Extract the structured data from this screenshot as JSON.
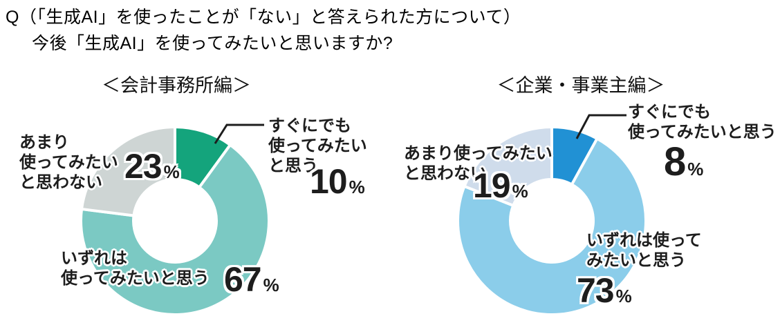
{
  "page": {
    "background": "#ffffff",
    "question_line1": "Q（「生成AI」を使ったことが「ない」と答えられた方について）",
    "question_line2": "今後「生成AI」を使ってみたいと思いますか?"
  },
  "chart_data": [
    {
      "type": "pie",
      "subtype": "donut",
      "title": "＜会計事務所編＞",
      "categories": [
        "すぐにでも使ってみたいと思う",
        "いずれは使ってみたいと思う",
        "あまり使ってみたいと思わない"
      ],
      "values": [
        10,
        67,
        23
      ],
      "unit": "%",
      "colors": [
        "#14a47c",
        "#7bc9c3",
        "#ced5d4"
      ],
      "start_angle": "top",
      "direction": "clockwise",
      "legend": "none",
      "annotations": [
        {
          "lines": [
            "すぐにでも",
            "使ってみたい",
            "と思う"
          ],
          "value": "10",
          "unit": "%"
        },
        {
          "lines": [
            "いずれは",
            "使ってみたいと思う"
          ],
          "value": "67",
          "unit": "%"
        },
        {
          "lines": [
            "あまり",
            "使ってみたい",
            "と思わない"
          ],
          "value": "23",
          "unit": "%"
        }
      ]
    },
    {
      "type": "pie",
      "subtype": "donut",
      "title": "＜企業・事業主編＞",
      "categories": [
        "すぐにでも使ってみたいと思う",
        "いずれは使ってみたいと思う",
        "あまり使ってみたいと思わない"
      ],
      "values": [
        8,
        73,
        19
      ],
      "unit": "%",
      "colors": [
        "#2191d4",
        "#8bcdea",
        "#cfdceb"
      ],
      "start_angle": "top",
      "direction": "clockwise",
      "legend": "none",
      "annotations": [
        {
          "lines": [
            "すぐにでも",
            "使ってみたいと思う"
          ],
          "value": "8",
          "unit": "%"
        },
        {
          "lines": [
            "いずれは使って",
            "みたいと思う"
          ],
          "value": "73",
          "unit": "%"
        },
        {
          "lines": [
            "あまり使ってみたい",
            "と思わない"
          ],
          "value": "19",
          "unit": "%"
        }
      ]
    }
  ]
}
